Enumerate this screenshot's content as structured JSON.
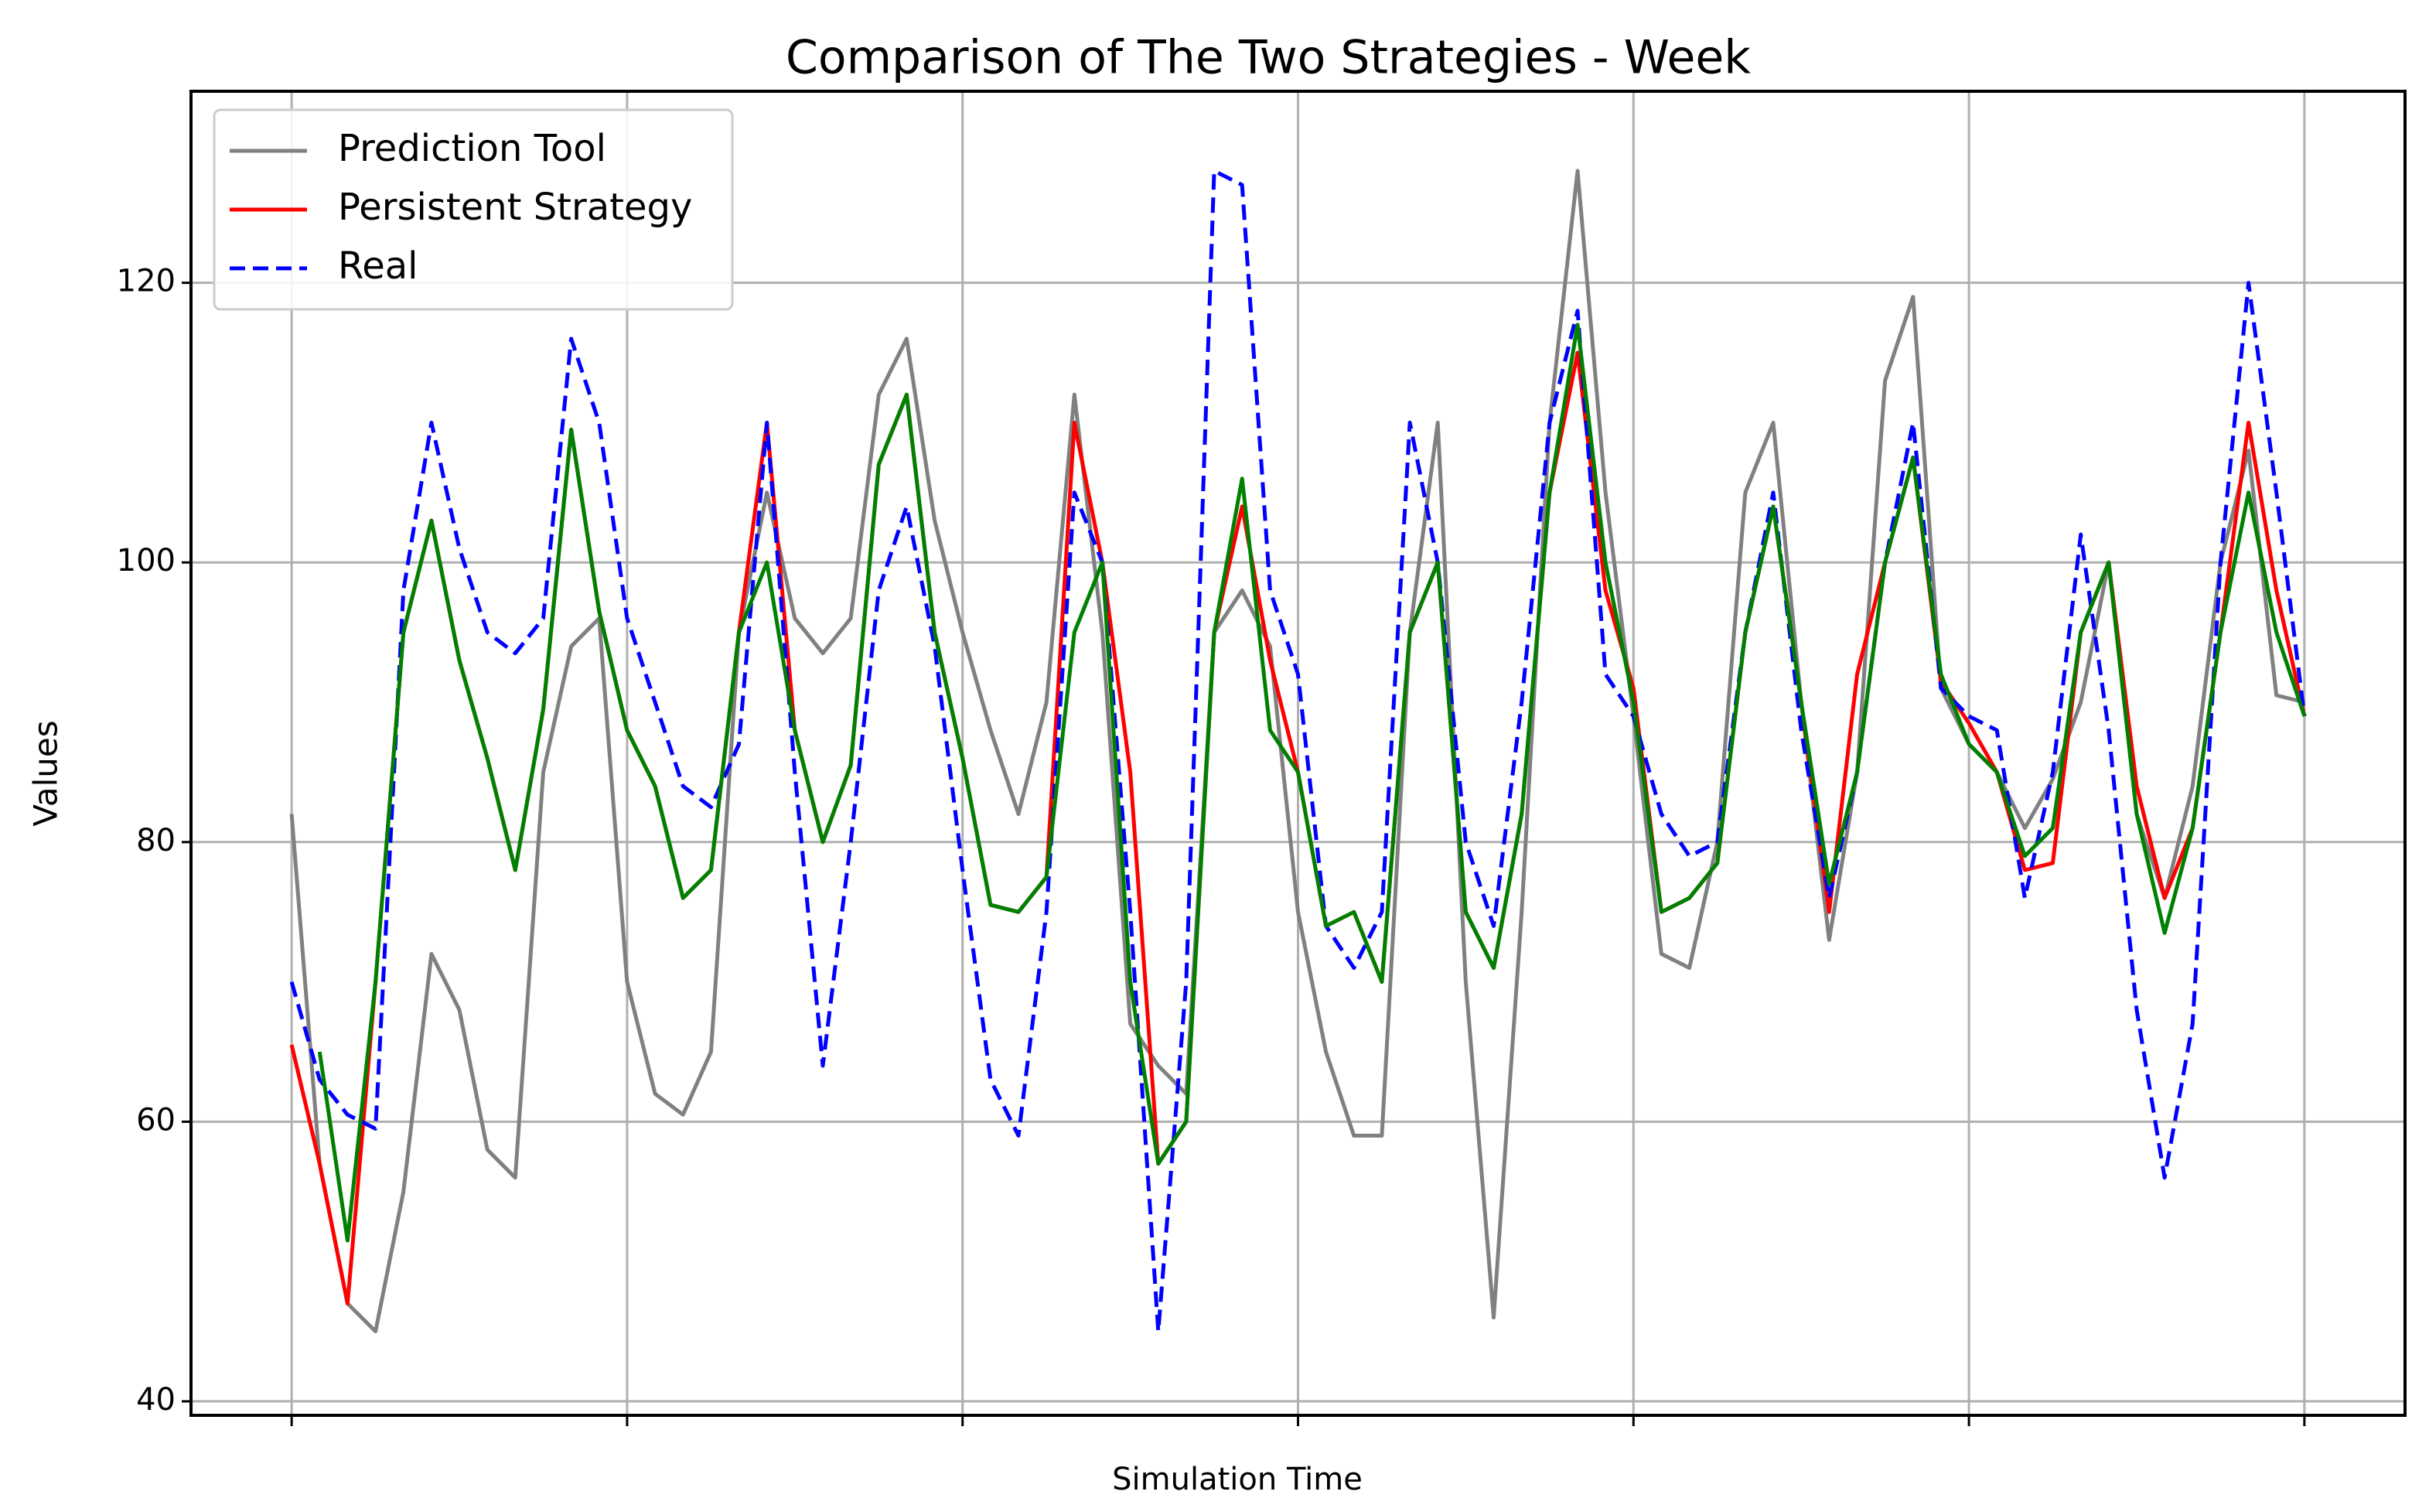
{
  "chart_data": {
    "type": "line",
    "title": "Comparison of The Two Strategies - Week",
    "xlabel": "Simulation Time",
    "ylabel": "Values",
    "x": [
      0,
      2,
      4,
      6,
      8,
      10,
      12,
      14,
      16,
      18,
      20,
      22,
      24,
      26,
      28,
      30,
      32,
      34,
      36,
      38,
      40,
      42,
      44,
      46,
      48,
      50,
      52,
      54,
      56,
      58,
      60,
      62,
      64,
      66,
      68,
      70,
      72,
      74,
      76,
      78,
      80,
      82,
      84,
      86,
      88,
      90,
      92,
      94,
      96,
      98,
      100,
      102,
      104,
      106,
      108,
      110,
      112,
      114,
      116,
      118,
      120,
      122,
      124,
      126,
      128,
      130,
      132,
      134,
      136,
      138,
      140,
      142,
      144
    ],
    "series": [
      {
        "name": "Prediction Tool",
        "color": "#808080",
        "dashed": false,
        "values": [
          82,
          57,
          47,
          45,
          55,
          72,
          68,
          58,
          56,
          85,
          94,
          96,
          70,
          62,
          60.5,
          65,
          95,
          105,
          96,
          93.5,
          96,
          112,
          116,
          103,
          95,
          88,
          82,
          90,
          112,
          95,
          67,
          64,
          62,
          95,
          98,
          94,
          75,
          65,
          59,
          59,
          95,
          110,
          70,
          46,
          75,
          110,
          128,
          105,
          89,
          72,
          71,
          80,
          105,
          110,
          90,
          73,
          85,
          113,
          119,
          91,
          87,
          85,
          81,
          84.5,
          90,
          100,
          82,
          76,
          84,
          100,
          108,
          90.5,
          90
        ]
      },
      {
        "name": "Persistent Strategy",
        "color": "#ff0000",
        "dashed": false,
        "values": [
          65.5,
          57,
          47,
          70,
          95,
          103,
          93,
          86,
          78,
          89.5,
          109.5,
          96.5,
          88,
          84,
          76,
          78,
          95,
          110,
          88,
          80,
          85.5,
          107,
          112,
          95,
          86,
          75.5,
          75,
          77.5,
          110,
          100,
          85,
          57,
          60,
          95,
          104,
          93,
          85,
          74,
          75,
          70,
          95,
          100,
          75,
          71,
          82,
          105,
          115,
          98,
          91,
          75,
          76,
          78.5,
          95,
          104,
          90,
          75,
          92,
          100,
          107.5,
          91.5,
          88.5,
          85,
          78,
          78.5,
          95,
          100,
          84,
          76,
          81,
          95,
          110,
          98,
          89
        ]
      },
      {
        "name": "Real",
        "color": "#0000ff",
        "dashed": true,
        "values": [
          70,
          63,
          60.5,
          59.5,
          98,
          110,
          101,
          95,
          93.5,
          96,
          116,
          110,
          96,
          90,
          84,
          82.5,
          87,
          110,
          85,
          64,
          80,
          98,
          104,
          94,
          78,
          63,
          59,
          75,
          105,
          100,
          75,
          45,
          70,
          128,
          127,
          98,
          92,
          74,
          71,
          75,
          110,
          100,
          80,
          74,
          90,
          110,
          118,
          92,
          89,
          82,
          79,
          80,
          95,
          105,
          88,
          76,
          85,
          100,
          110,
          91,
          89,
          88,
          76,
          85,
          102,
          88,
          68,
          56,
          67,
          100,
          120,
          105,
          89
        ]
      },
      {
        "color": "#008000",
        "dashed": false,
        "values": [
          null,
          65,
          51.5,
          70,
          95,
          103,
          93,
          86,
          78,
          89.5,
          109.5,
          96.5,
          88,
          84,
          76,
          78,
          95,
          100,
          88,
          80,
          85.5,
          107,
          112,
          95,
          86,
          75.5,
          75,
          77.5,
          95,
          100,
          70,
          57,
          60,
          95,
          106,
          88,
          85,
          74,
          75,
          70,
          95,
          100,
          75,
          71,
          82,
          105,
          117,
          100,
          90,
          75,
          76,
          78.5,
          95,
          104,
          90,
          77,
          85,
          100,
          107.5,
          92,
          87,
          85,
          79,
          81,
          95,
          100,
          82,
          73.5,
          81,
          95,
          105,
          95,
          89
        ]
      }
    ],
    "xlim": [
      -7.2,
      151.2
    ],
    "xticks": [
      0,
      24,
      48,
      72,
      96,
      120,
      144
    ],
    "ylim": [
      39,
      133.7
    ],
    "yticks": [
      40,
      60,
      80,
      100,
      120
    ],
    "grid": true,
    "legend": "upper left"
  }
}
